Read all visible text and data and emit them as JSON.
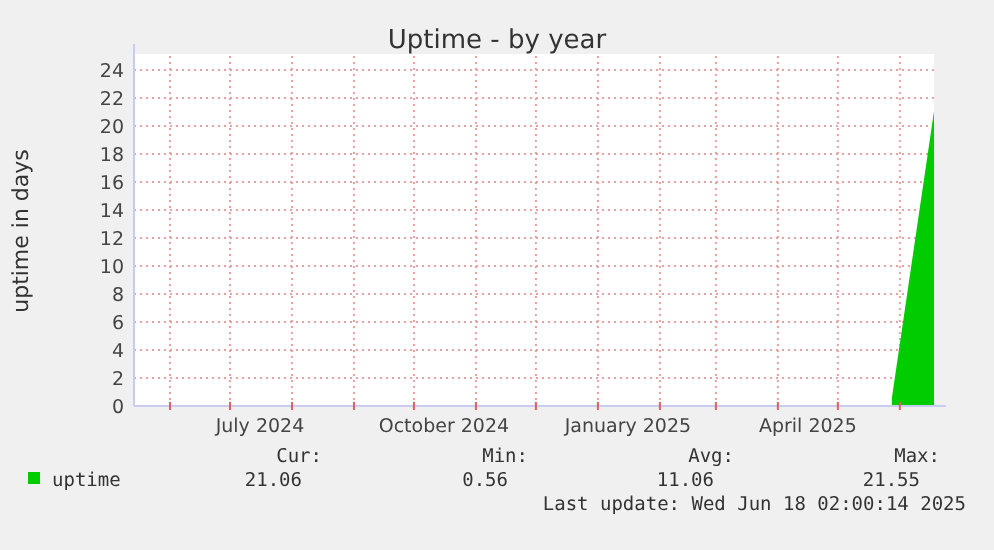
{
  "chart_data": {
    "type": "area",
    "title": "Uptime - by year",
    "ylabel": "uptime in days",
    "x": [
      "2025-05-28",
      "2025-06-18T02:00"
    ],
    "series": [
      {
        "name": "uptime",
        "color": "#00cc00",
        "values": [
          0.56,
          21.06
        ]
      }
    ],
    "xlim": [
      "2024-05-14",
      "2025-06-18T02:00"
    ],
    "xticks": [
      {
        "value": "2024-06-01",
        "label": null
      },
      {
        "value": "2024-07-01",
        "label": null
      },
      {
        "value": "2024-08-01",
        "label": null
      },
      {
        "value": "2024-09-01",
        "label": null
      },
      {
        "value": "2024-10-01",
        "label": null
      },
      {
        "value": "2024-11-01",
        "label": null
      },
      {
        "value": "2024-12-01",
        "label": null
      },
      {
        "value": "2025-01-01",
        "label": null
      },
      {
        "value": "2025-02-01",
        "label": null
      },
      {
        "value": "2025-03-01",
        "label": null
      },
      {
        "value": "2025-04-01",
        "label": null
      },
      {
        "value": "2025-05-01",
        "label": null
      },
      {
        "value": "2025-06-01",
        "label": null
      },
      {
        "value": "2024-07-16",
        "label": "July 2024"
      },
      {
        "value": "2024-10-16",
        "label": "October 2024"
      },
      {
        "value": "2025-01-16",
        "label": "January 2025"
      },
      {
        "value": "2025-04-16",
        "label": "April 2025"
      }
    ],
    "ylim": [
      0,
      25
    ],
    "yticks": [
      0,
      2,
      4,
      6,
      8,
      10,
      12,
      14,
      16,
      18,
      20,
      22,
      24
    ],
    "grid": true,
    "legend": "bottom",
    "annotations": [
      "Cur:",
      "Min:",
      "Avg:",
      "Max:",
      "21.06",
      "0.56",
      "11.06",
      "21.55",
      "Last update: Wed Jun 18 02:00:14 2025"
    ]
  }
}
